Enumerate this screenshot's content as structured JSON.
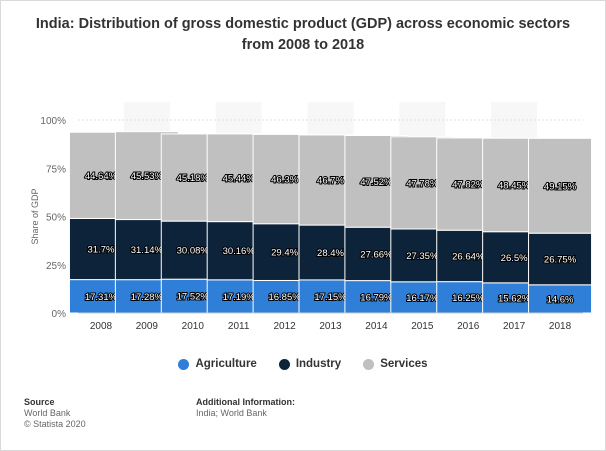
{
  "chart_data": {
    "type": "bar",
    "stacked": true,
    "title": "India: Distribution of gross domestic product (GDP) across economic sectors from 2008 to 2018",
    "ylabel": "Share of GDP",
    "xlabel": "",
    "ylim": [
      0,
      100
    ],
    "yticks": [
      "0%",
      "25%",
      "50%",
      "75%",
      "100%"
    ],
    "grid": true,
    "legend_position": "bottom",
    "categories": [
      "2008",
      "2009",
      "2010",
      "2011",
      "2012",
      "2013",
      "2014",
      "2015",
      "2016",
      "2017",
      "2018"
    ],
    "series": [
      {
        "name": "Agriculture",
        "color": "#2f7ed8",
        "values": [
          17.31,
          17.28,
          17.52,
          17.19,
          16.85,
          17.15,
          16.79,
          16.17,
          16.25,
          15.62,
          14.6
        ],
        "labels": [
          "17.31%",
          "17.28%",
          "17.52%",
          "17.19%",
          "16.85%",
          "17.15%",
          "16.79%",
          "16.17%",
          "16.25%",
          "15.62%",
          "14.6%"
        ]
      },
      {
        "name": "Industry",
        "color": "#0d233a",
        "values": [
          31.7,
          31.14,
          30.08,
          30.16,
          29.4,
          28.4,
          27.66,
          27.35,
          26.64,
          26.5,
          26.75
        ],
        "labels": [
          "31.7%",
          "31.14%",
          "30.08%",
          "30.16%",
          "29.4%",
          "28.4%",
          "27.66%",
          "27.35%",
          "26.64%",
          "26.5%",
          "26.75%"
        ]
      },
      {
        "name": "Services",
        "color": "#c0c0c0",
        "values": [
          44.64,
          45.53,
          45.18,
          45.44,
          46.3,
          46.7,
          47.52,
          47.78,
          47.82,
          48.45,
          49.15
        ],
        "labels": [
          "44.64%",
          "45.53%",
          "45.18%",
          "45.44%",
          "46.3%",
          "46.7%",
          "47.52%",
          "47.78%",
          "47.82%",
          "48.45%",
          "49.15%"
        ]
      }
    ]
  },
  "footer": {
    "source_heading": "Source",
    "source_lines": [
      "World Bank",
      "© Statista 2020"
    ],
    "additional_heading": "Additional Information:",
    "additional_lines": [
      "India; World Bank"
    ]
  }
}
